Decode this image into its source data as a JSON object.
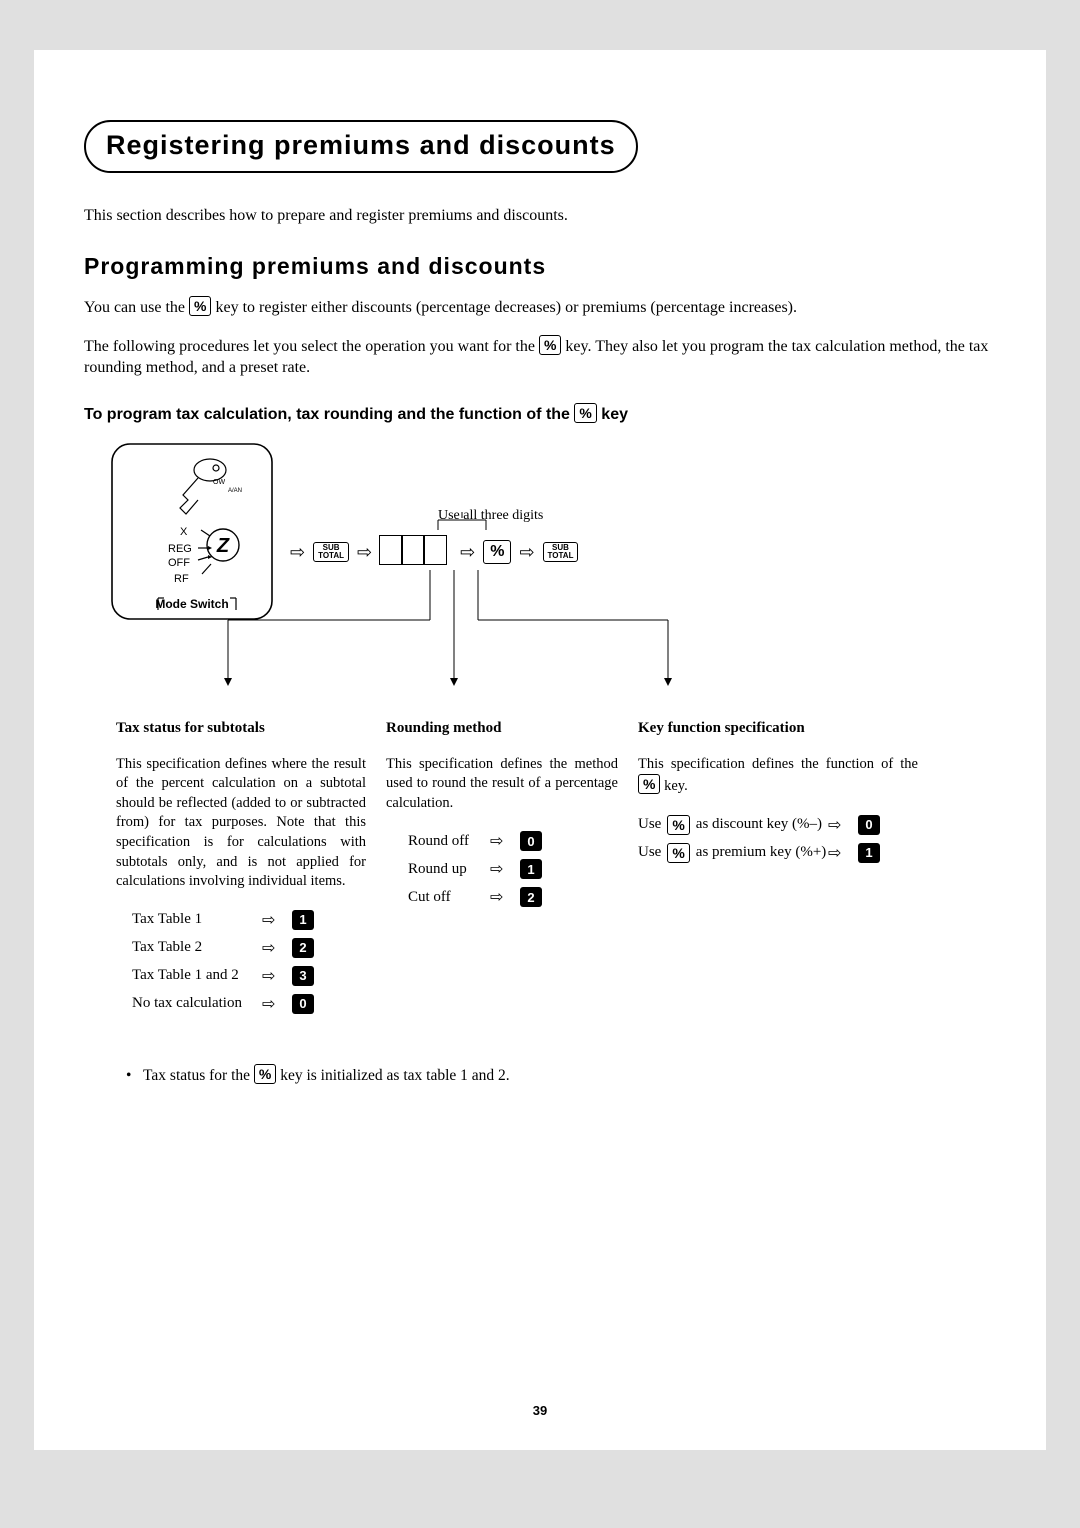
{
  "page_number": "39",
  "title_pill": "Registering premiums and discounts",
  "intro": "This section describes how to prepare and register premiums and discounts.",
  "h2": "Programming premiums and discounts",
  "p1_pre": "You can use the ",
  "p1_key": "%",
  "p1_post": " key to register either discounts (percentage decreases) or premiums (percentage increases).",
  "p2_pre": "The following procedures let you select the operation you want for the ",
  "p2_key": "%",
  "p2_post": " key.  They also let you program the tax calculation method, the tax rounding method, and a preset rate.",
  "h3_pre": "To program tax calculation, tax rounding and the function of the ",
  "h3_key": "%",
  "h3_post": " key",
  "diagram": {
    "digit_label": "Use all three digits",
    "subtotal_line1": "SUB",
    "subtotal_line2": "TOTAL",
    "percent_key": "%",
    "mode_switch_label": "Mode Switch",
    "dial_positions": [
      "OW",
      "A/AN",
      "X",
      "REG",
      "OFF",
      "RF"
    ],
    "z_label": "Z"
  },
  "columns": {
    "c1": {
      "heading": "Tax status for subtotals",
      "text": "This specification defines where the result of the percent calculation on a subtotal should be reflected (added to or subtracted from) for tax purposes. Note that this specification is for calculations with subtotals only, and is not applied for calculations involving individual items.",
      "options": [
        {
          "label": "Tax Table 1",
          "key": "1"
        },
        {
          "label": "Tax Table 2",
          "key": "2"
        },
        {
          "label": "Tax Table 1 and 2",
          "key": "3"
        },
        {
          "label": "No tax calculation",
          "key": "0"
        }
      ]
    },
    "c2": {
      "heading": "Rounding method",
      "text": "This specification defines the method used to round the result of a percentage calculation.",
      "options": [
        {
          "label": "Round off",
          "key": "0"
        },
        {
          "label": "Round up",
          "key": "1"
        },
        {
          "label": "Cut off",
          "key": "2"
        }
      ]
    },
    "c3": {
      "heading": "Key function specification",
      "text_pre": "This specification defines the function of the ",
      "text_key": "%",
      "text_post": " key.",
      "options": [
        {
          "pre": "Use ",
          "keylabel": "%",
          "post": " as discount key (%–)",
          "key": "0"
        },
        {
          "pre": "Use ",
          "keylabel": "%",
          "post": " as premium key (%+)",
          "key": "1"
        }
      ]
    }
  },
  "note_pre": "Tax status for the ",
  "note_key": "%",
  "note_post": " key is initialized as tax table 1 and 2.",
  "colors": {
    "page_bg": "#e0e0e0",
    "paper_bg": "#ffffff",
    "text": "#000000",
    "numkey_bg": "#000000",
    "numkey_fg": "#ffffff"
  }
}
